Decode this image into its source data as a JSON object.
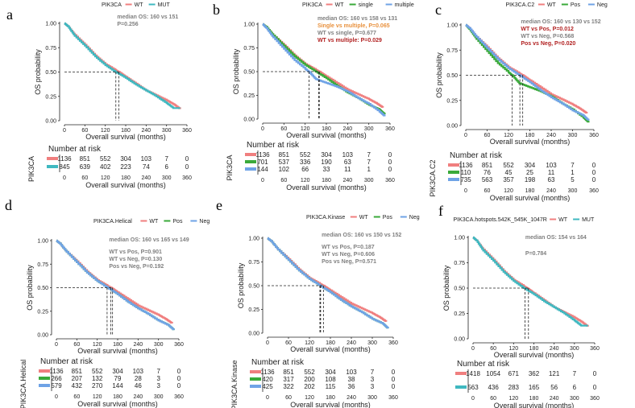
{
  "colors": {
    "series1": "#f07f7f",
    "series2": "#3fb8c0",
    "series3": "#3aaa3a",
    "series4": "#6fa3e6",
    "ann_gray": "#808080",
    "ann_orange": "#e8903c",
    "ann_red": "#b22222"
  },
  "chart_data": [
    {
      "panel": "a",
      "type": "line",
      "legend_title": "PIK3CA",
      "series": [
        {
          "name": "WT",
          "color": "#f07f7f"
        },
        {
          "name": "MUT",
          "color": "#3fb8c0"
        }
      ],
      "xlabel": "Overall survival (months)",
      "ylabel": "OS probability",
      "xticks": [
        "0",
        "60",
        "120",
        "180",
        "240",
        "300",
        "360"
      ],
      "yticks": [
        "0.00",
        "0.25",
        "0.50",
        "0.75",
        "1.00"
      ],
      "xlim": [
        0,
        360
      ],
      "ylim": [
        0,
        1
      ],
      "median_x": [
        151,
        160
      ],
      "annotations": [
        {
          "text": "median OS: 160 vs 151",
          "color": "#808080"
        },
        {
          "text": "P=0.256",
          "color": "#808080"
        }
      ],
      "risk_title": "Number at risk",
      "risk_label": "PIK3CA",
      "risk_rows": [
        [
          "1136",
          "851",
          "552",
          "304",
          "103",
          "7",
          "0"
        ],
        [
          "845",
          "639",
          "402",
          "223",
          "74",
          "6",
          "0"
        ]
      ]
    },
    {
      "panel": "b",
      "type": "line",
      "legend_title": "PIK3CA",
      "series": [
        {
          "name": "WT",
          "color": "#f07f7f"
        },
        {
          "name": "single",
          "color": "#3aaa3a"
        },
        {
          "name": "multiple",
          "color": "#6fa3e6"
        }
      ],
      "xlabel": "Overall survival (months)",
      "ylabel": "OS probability",
      "xticks": [
        "0",
        "60",
        "120",
        "180",
        "240",
        "300",
        "360"
      ],
      "yticks": [
        "0.00",
        "0.25",
        "0.50",
        "0.75",
        "1.00"
      ],
      "xlim": [
        0,
        360
      ],
      "ylim": [
        0,
        1
      ],
      "median_x": [
        131,
        158,
        160
      ],
      "annotations": [
        {
          "text": "median OS: 160 vs 158 vs 131",
          "color": "#808080"
        },
        {
          "text": "Single vs multiple,  P=0.065",
          "color": "#e8903c"
        },
        {
          "text": "WT vs single,  P=0.677",
          "color": "#808080"
        },
        {
          "text": "WT vs multiple: P=0.029",
          "color": "#b22222"
        }
      ],
      "risk_title": "Number at risk",
      "risk_label": "PIK3CA",
      "risk_rows": [
        [
          "1136",
          "851",
          "552",
          "304",
          "103",
          "7",
          "0"
        ],
        [
          "701",
          "537",
          "336",
          "190",
          "63",
          "7",
          "0"
        ],
        [
          "144",
          "102",
          "66",
          "33",
          "11",
          "1",
          "0"
        ]
      ]
    },
    {
      "panel": "c",
      "type": "line",
      "legend_title": "PIK3CA.C2",
      "series": [
        {
          "name": "WT",
          "color": "#f07f7f"
        },
        {
          "name": "Pos",
          "color": "#3aaa3a"
        },
        {
          "name": "Neg",
          "color": "#6fa3e6"
        }
      ],
      "xlabel": "Overall survival (months)",
      "ylabel": "OS probability",
      "xticks": [
        "0",
        "60",
        "120",
        "180",
        "240",
        "300",
        "360"
      ],
      "yticks": [
        "0.00",
        "0.25",
        "0.50",
        "0.75",
        "1.00"
      ],
      "xlim": [
        0,
        360
      ],
      "ylim": [
        0,
        1
      ],
      "median_x": [
        130,
        152,
        160
      ],
      "annotations": [
        {
          "text": "median OS: 160 vs 130 vs 152",
          "color": "#808080"
        },
        {
          "text": "WT vs Pos,  P=0.012",
          "color": "#b22222"
        },
        {
          "text": "WT vs Neg,  P=0.568",
          "color": "#808080"
        },
        {
          "text": "Pos vs Neg,  P=0.020",
          "color": "#b22222"
        }
      ],
      "risk_title": "Number at risk",
      "risk_label": "PIK3CA.C2",
      "risk_rows": [
        [
          "1136",
          "851",
          "552",
          "304",
          "103",
          "7",
          "0"
        ],
        [
          "110",
          "76",
          "45",
          "25",
          "11",
          "1",
          "0"
        ],
        [
          "735",
          "563",
          "357",
          "198",
          "63",
          "5",
          "0"
        ]
      ]
    },
    {
      "panel": "d",
      "type": "line",
      "legend_title": "PIK3CA.Helical",
      "series": [
        {
          "name": "WT",
          "color": "#f07f7f"
        },
        {
          "name": "Pos",
          "color": "#3aaa3a"
        },
        {
          "name": "Neg",
          "color": "#6fa3e6"
        }
      ],
      "xlabel": "Overall survival (months)",
      "ylabel": "OS probability",
      "xticks": [
        "0",
        "60",
        "120",
        "180",
        "240",
        "300",
        "360"
      ],
      "yticks": [
        "0.00",
        "0.25",
        "0.50",
        "0.75",
        "1.00"
      ],
      "xlim": [
        0,
        360
      ],
      "ylim": [
        0,
        1
      ],
      "median_x": [
        149,
        160,
        165
      ],
      "annotations": [
        {
          "text": "median OS: 160 vs 165 vs 149",
          "color": "#808080"
        },
        {
          "text": "WT vs Pos,  P=0.901",
          "color": "#808080"
        },
        {
          "text": "WT vs Neg,  P=0.130",
          "color": "#808080"
        },
        {
          "text": "Pos vs Neg,  P=0.192",
          "color": "#808080"
        }
      ],
      "risk_title": "Number at risk",
      "risk_label": "PIK3CA.Helical",
      "risk_rows": [
        [
          "1136",
          "851",
          "552",
          "304",
          "103",
          "7",
          "0"
        ],
        [
          "266",
          "207",
          "132",
          "79",
          "28",
          "3",
          "0"
        ],
        [
          "579",
          "432",
          "270",
          "144",
          "46",
          "3",
          "0"
        ]
      ]
    },
    {
      "panel": "e",
      "type": "line",
      "legend_title": "PIK3CA.Kinase",
      "series": [
        {
          "name": "WT",
          "color": "#f07f7f"
        },
        {
          "name": "Pos",
          "color": "#3aaa3a"
        },
        {
          "name": "Neg",
          "color": "#6fa3e6"
        }
      ],
      "xlabel": "Overall survival (months)",
      "ylabel": "OS probability",
      "xticks": [
        "0",
        "60",
        "120",
        "180",
        "240",
        "300",
        "360"
      ],
      "yticks": [
        "0.00",
        "0.25",
        "0.50",
        "0.75",
        "1.00"
      ],
      "xlim": [
        0,
        360
      ],
      "ylim": [
        0,
        1
      ],
      "median_x": [
        150,
        152,
        160
      ],
      "annotations": [
        {
          "text": "median OS: 160 vs 150 vs 152",
          "color": "#808080"
        },
        {
          "text": "WT vs Pos,  P=0.187",
          "color": "#808080"
        },
        {
          "text": "WT vs Neg,  P=0.606",
          "color": "#808080"
        },
        {
          "text": "Pos vs Neg,  P=0.571",
          "color": "#808080"
        }
      ],
      "risk_title": "Number at risk",
      "risk_label": "PIK3CA.Kinase",
      "risk_rows": [
        [
          "1136",
          "851",
          "552",
          "304",
          "103",
          "7",
          "0"
        ],
        [
          "420",
          "317",
          "200",
          "108",
          "38",
          "3",
          "0"
        ],
        [
          "425",
          "322",
          "202",
          "115",
          "36",
          "3",
          "0"
        ]
      ]
    },
    {
      "panel": "f",
      "type": "line",
      "legend_title": "PIK3CA.hotspots.542K_545K_1047R",
      "series": [
        {
          "name": "WT",
          "color": "#f07f7f"
        },
        {
          "name": "MUT",
          "color": "#3fb8c0"
        }
      ],
      "xlabel": "Overall survival (months)",
      "ylabel": "OS probability",
      "xticks": [
        "0",
        "60",
        "120",
        "180",
        "240",
        "300",
        "360"
      ],
      "yticks": [
        "0.00",
        "0.25",
        "0.50",
        "0.75",
        "1.00"
      ],
      "xlim": [
        0,
        360
      ],
      "ylim": [
        0,
        1
      ],
      "median_x": [
        154,
        164
      ],
      "annotations": [
        {
          "text": "median OS: 154 vs 164",
          "color": "#808080"
        },
        {
          "text": "P=0.784",
          "color": "#808080"
        }
      ],
      "risk_title": "Number at risk",
      "risk_label": "",
      "risk_rows": [
        [
          "1418",
          "1054",
          "671",
          "362",
          "121",
          "7",
          "0"
        ],
        [
          "563",
          "436",
          "283",
          "165",
          "56",
          "6",
          "0"
        ]
      ]
    }
  ]
}
